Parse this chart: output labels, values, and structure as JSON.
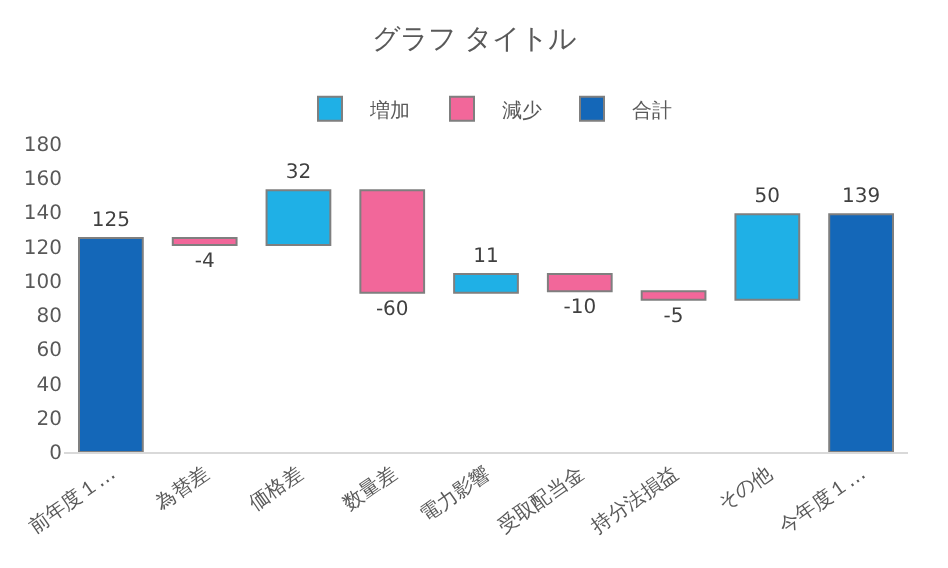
{
  "chart_data": {
    "type": "bar",
    "title": "グラフ タイトル",
    "categories": [
      "前年度１…",
      "為替差",
      "価格差",
      "数量差",
      "電力影響",
      "受取配当金",
      "持分法損益",
      "その他",
      "今年度１…"
    ],
    "series": [
      {
        "name": "増加",
        "color": "#1fb0e6",
        "values": [
          null,
          null,
          32,
          null,
          11,
          null,
          null,
          50,
          null
        ],
        "base": [
          null,
          null,
          121,
          null,
          93,
          null,
          null,
          89,
          null
        ]
      },
      {
        "name": "減少",
        "color": "#f2679a",
        "values": [
          null,
          -4,
          null,
          -60,
          null,
          -10,
          -5,
          null,
          null
        ],
        "base": [
          null,
          125,
          null,
          153,
          null,
          104,
          94,
          null,
          null
        ]
      },
      {
        "name": "合計",
        "color": "#1467b8",
        "values": [
          125,
          null,
          null,
          null,
          null,
          null,
          null,
          null,
          139
        ],
        "base": [
          0,
          null,
          null,
          null,
          null,
          null,
          null,
          null,
          0
        ]
      }
    ],
    "ylim": [
      0,
      180
    ],
    "yticks": [
      0,
      20,
      40,
      60,
      80,
      100,
      120,
      140,
      160,
      180
    ],
    "data_labels": true,
    "grid": false,
    "legend": "top"
  }
}
